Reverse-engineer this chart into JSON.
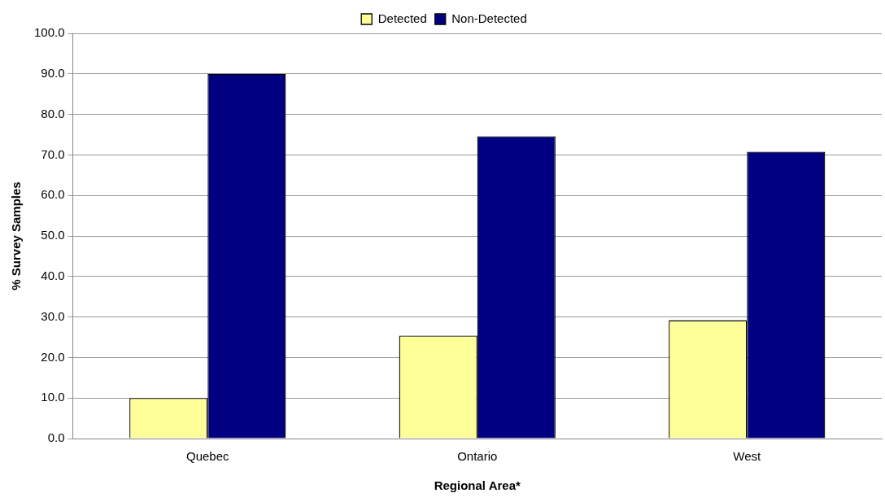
{
  "chart_data": {
    "type": "bar",
    "xlabel": "Regional Area*",
    "ylabel": "% Survey Samples",
    "categories": [
      "Quebec",
      "Ontario",
      "West"
    ],
    "series": [
      {
        "name": "Detected",
        "color": "#ffff99",
        "values": [
          10.0,
          25.4,
          29.2
        ]
      },
      {
        "name": "Non-Detected",
        "color": "#000080",
        "values": [
          90.0,
          74.6,
          70.8
        ]
      }
    ],
    "ylim": [
      0,
      100
    ],
    "yticks": [
      {
        "value": 0,
        "label": "0.0"
      },
      {
        "value": 10,
        "label": "10.0"
      },
      {
        "value": 20,
        "label": "20.0"
      },
      {
        "value": 30,
        "label": "30.0"
      },
      {
        "value": 40,
        "label": "40.0"
      },
      {
        "value": 50,
        "label": "50.0"
      },
      {
        "value": 60,
        "label": "60.0"
      },
      {
        "value": 70,
        "label": "70.0"
      },
      {
        "value": 80,
        "label": "80.0"
      },
      {
        "value": 90,
        "label": "90.0"
      },
      {
        "value": 100,
        "label": "100.0"
      }
    ],
    "grid": "y",
    "legend": "top"
  }
}
